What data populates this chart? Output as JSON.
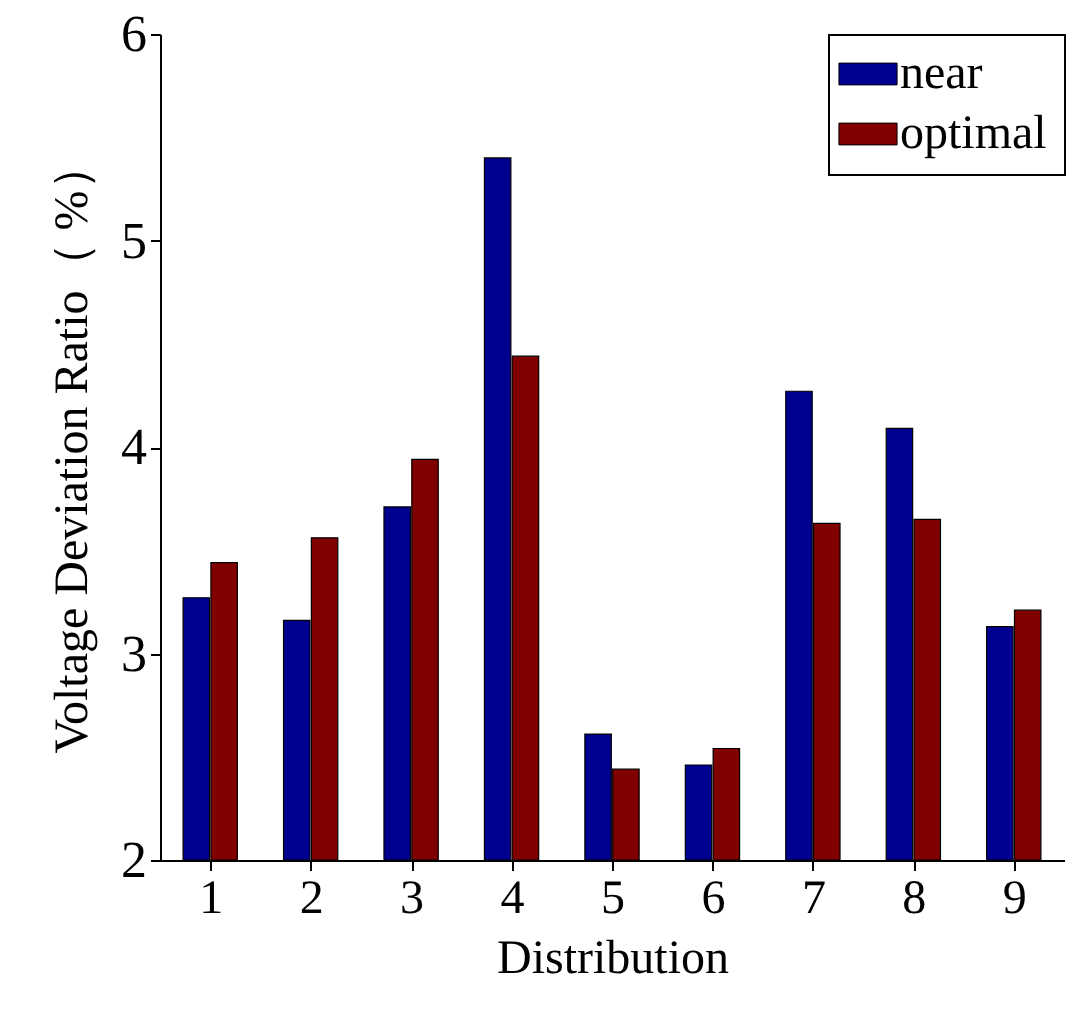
{
  "chart_data": {
    "type": "bar",
    "xlabel": "Distribution",
    "ylabel": "Voltage Deviation Ratio（ %）",
    "categories": [
      "1",
      "2",
      "3",
      "4",
      "5",
      "6",
      "7",
      "8",
      "9"
    ],
    "series": [
      {
        "name": "near",
        "color": "#000090",
        "values": [
          3.27,
          3.16,
          3.71,
          5.4,
          2.61,
          2.46,
          4.27,
          4.09,
          3.13
        ]
      },
      {
        "name": "optimal",
        "color": "#800000",
        "values": [
          3.44,
          3.56,
          3.94,
          4.44,
          2.44,
          2.54,
          3.63,
          3.65,
          3.21
        ]
      }
    ],
    "ylim": [
      2,
      6
    ],
    "yticks": [
      2,
      3,
      4,
      5,
      6
    ],
    "legend": "top right"
  }
}
